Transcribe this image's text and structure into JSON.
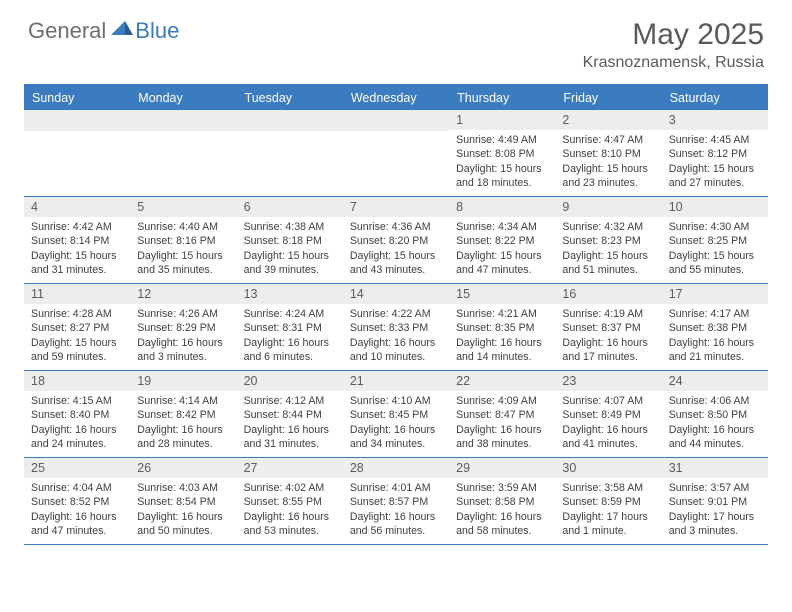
{
  "logo": {
    "general": "General",
    "blue": "Blue"
  },
  "header": {
    "month_title": "May 2025",
    "location": "Krasnoznamensk, Russia"
  },
  "colors": {
    "brand_blue": "#3b7bbf",
    "brand_gray": "#6d6e71",
    "header_text": "#595a5c",
    "daynum_bg": "#eceded",
    "daynum_text": "#5b5c5e",
    "body_text": "#3e3f41",
    "background": "#ffffff"
  },
  "weekdays": [
    "Sunday",
    "Monday",
    "Tuesday",
    "Wednesday",
    "Thursday",
    "Friday",
    "Saturday"
  ],
  "weeks": [
    [
      {
        "empty": true
      },
      {
        "empty": true
      },
      {
        "empty": true
      },
      {
        "empty": true
      },
      {
        "num": "1",
        "sunrise": "Sunrise: 4:49 AM",
        "sunset": "Sunset: 8:08 PM",
        "daylight1": "Daylight: 15 hours",
        "daylight2": "and 18 minutes."
      },
      {
        "num": "2",
        "sunrise": "Sunrise: 4:47 AM",
        "sunset": "Sunset: 8:10 PM",
        "daylight1": "Daylight: 15 hours",
        "daylight2": "and 23 minutes."
      },
      {
        "num": "3",
        "sunrise": "Sunrise: 4:45 AM",
        "sunset": "Sunset: 8:12 PM",
        "daylight1": "Daylight: 15 hours",
        "daylight2": "and 27 minutes."
      }
    ],
    [
      {
        "num": "4",
        "sunrise": "Sunrise: 4:42 AM",
        "sunset": "Sunset: 8:14 PM",
        "daylight1": "Daylight: 15 hours",
        "daylight2": "and 31 minutes."
      },
      {
        "num": "5",
        "sunrise": "Sunrise: 4:40 AM",
        "sunset": "Sunset: 8:16 PM",
        "daylight1": "Daylight: 15 hours",
        "daylight2": "and 35 minutes."
      },
      {
        "num": "6",
        "sunrise": "Sunrise: 4:38 AM",
        "sunset": "Sunset: 8:18 PM",
        "daylight1": "Daylight: 15 hours",
        "daylight2": "and 39 minutes."
      },
      {
        "num": "7",
        "sunrise": "Sunrise: 4:36 AM",
        "sunset": "Sunset: 8:20 PM",
        "daylight1": "Daylight: 15 hours",
        "daylight2": "and 43 minutes."
      },
      {
        "num": "8",
        "sunrise": "Sunrise: 4:34 AM",
        "sunset": "Sunset: 8:22 PM",
        "daylight1": "Daylight: 15 hours",
        "daylight2": "and 47 minutes."
      },
      {
        "num": "9",
        "sunrise": "Sunrise: 4:32 AM",
        "sunset": "Sunset: 8:23 PM",
        "daylight1": "Daylight: 15 hours",
        "daylight2": "and 51 minutes."
      },
      {
        "num": "10",
        "sunrise": "Sunrise: 4:30 AM",
        "sunset": "Sunset: 8:25 PM",
        "daylight1": "Daylight: 15 hours",
        "daylight2": "and 55 minutes."
      }
    ],
    [
      {
        "num": "11",
        "sunrise": "Sunrise: 4:28 AM",
        "sunset": "Sunset: 8:27 PM",
        "daylight1": "Daylight: 15 hours",
        "daylight2": "and 59 minutes."
      },
      {
        "num": "12",
        "sunrise": "Sunrise: 4:26 AM",
        "sunset": "Sunset: 8:29 PM",
        "daylight1": "Daylight: 16 hours",
        "daylight2": "and 3 minutes."
      },
      {
        "num": "13",
        "sunrise": "Sunrise: 4:24 AM",
        "sunset": "Sunset: 8:31 PM",
        "daylight1": "Daylight: 16 hours",
        "daylight2": "and 6 minutes."
      },
      {
        "num": "14",
        "sunrise": "Sunrise: 4:22 AM",
        "sunset": "Sunset: 8:33 PM",
        "daylight1": "Daylight: 16 hours",
        "daylight2": "and 10 minutes."
      },
      {
        "num": "15",
        "sunrise": "Sunrise: 4:21 AM",
        "sunset": "Sunset: 8:35 PM",
        "daylight1": "Daylight: 16 hours",
        "daylight2": "and 14 minutes."
      },
      {
        "num": "16",
        "sunrise": "Sunrise: 4:19 AM",
        "sunset": "Sunset: 8:37 PM",
        "daylight1": "Daylight: 16 hours",
        "daylight2": "and 17 minutes."
      },
      {
        "num": "17",
        "sunrise": "Sunrise: 4:17 AM",
        "sunset": "Sunset: 8:38 PM",
        "daylight1": "Daylight: 16 hours",
        "daylight2": "and 21 minutes."
      }
    ],
    [
      {
        "num": "18",
        "sunrise": "Sunrise: 4:15 AM",
        "sunset": "Sunset: 8:40 PM",
        "daylight1": "Daylight: 16 hours",
        "daylight2": "and 24 minutes."
      },
      {
        "num": "19",
        "sunrise": "Sunrise: 4:14 AM",
        "sunset": "Sunset: 8:42 PM",
        "daylight1": "Daylight: 16 hours",
        "daylight2": "and 28 minutes."
      },
      {
        "num": "20",
        "sunrise": "Sunrise: 4:12 AM",
        "sunset": "Sunset: 8:44 PM",
        "daylight1": "Daylight: 16 hours",
        "daylight2": "and 31 minutes."
      },
      {
        "num": "21",
        "sunrise": "Sunrise: 4:10 AM",
        "sunset": "Sunset: 8:45 PM",
        "daylight1": "Daylight: 16 hours",
        "daylight2": "and 34 minutes."
      },
      {
        "num": "22",
        "sunrise": "Sunrise: 4:09 AM",
        "sunset": "Sunset: 8:47 PM",
        "daylight1": "Daylight: 16 hours",
        "daylight2": "and 38 minutes."
      },
      {
        "num": "23",
        "sunrise": "Sunrise: 4:07 AM",
        "sunset": "Sunset: 8:49 PM",
        "daylight1": "Daylight: 16 hours",
        "daylight2": "and 41 minutes."
      },
      {
        "num": "24",
        "sunrise": "Sunrise: 4:06 AM",
        "sunset": "Sunset: 8:50 PM",
        "daylight1": "Daylight: 16 hours",
        "daylight2": "and 44 minutes."
      }
    ],
    [
      {
        "num": "25",
        "sunrise": "Sunrise: 4:04 AM",
        "sunset": "Sunset: 8:52 PM",
        "daylight1": "Daylight: 16 hours",
        "daylight2": "and 47 minutes."
      },
      {
        "num": "26",
        "sunrise": "Sunrise: 4:03 AM",
        "sunset": "Sunset: 8:54 PM",
        "daylight1": "Daylight: 16 hours",
        "daylight2": "and 50 minutes."
      },
      {
        "num": "27",
        "sunrise": "Sunrise: 4:02 AM",
        "sunset": "Sunset: 8:55 PM",
        "daylight1": "Daylight: 16 hours",
        "daylight2": "and 53 minutes."
      },
      {
        "num": "28",
        "sunrise": "Sunrise: 4:01 AM",
        "sunset": "Sunset: 8:57 PM",
        "daylight1": "Daylight: 16 hours",
        "daylight2": "and 56 minutes."
      },
      {
        "num": "29",
        "sunrise": "Sunrise: 3:59 AM",
        "sunset": "Sunset: 8:58 PM",
        "daylight1": "Daylight: 16 hours",
        "daylight2": "and 58 minutes."
      },
      {
        "num": "30",
        "sunrise": "Sunrise: 3:58 AM",
        "sunset": "Sunset: 8:59 PM",
        "daylight1": "Daylight: 17 hours",
        "daylight2": "and 1 minute."
      },
      {
        "num": "31",
        "sunrise": "Sunrise: 3:57 AM",
        "sunset": "Sunset: 9:01 PM",
        "daylight1": "Daylight: 17 hours",
        "daylight2": "and 3 minutes."
      }
    ]
  ]
}
